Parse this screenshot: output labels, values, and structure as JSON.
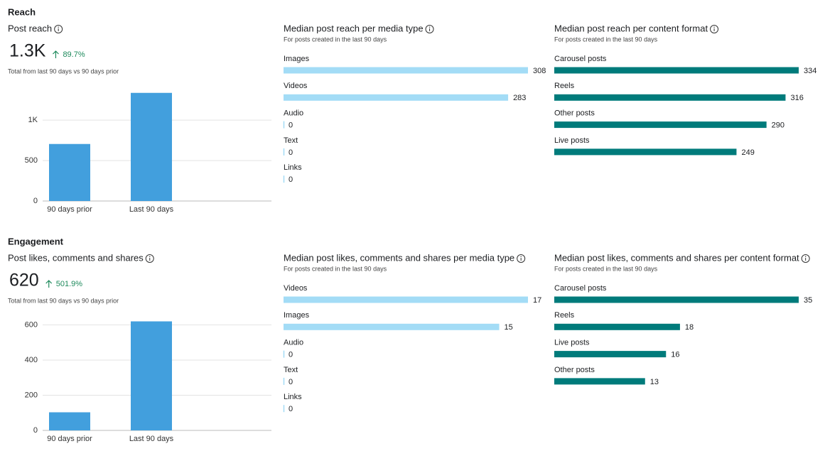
{
  "sections": [
    {
      "heading": "Reach"
    },
    {
      "heading": "Engagement"
    }
  ],
  "chart_data": [
    {
      "type": "bar",
      "title": "Post reach",
      "total": "1.3K",
      "change": "89.7%",
      "note": "Total from last 90 days vs 90 days prior",
      "categories": [
        "90 days prior",
        "Last 90 days"
      ],
      "values": [
        705,
        1337
      ],
      "color": "#429fdd",
      "ylim": [
        0,
        1370
      ],
      "yticks": [
        0,
        500,
        {
          "value": 1000,
          "label": "1K"
        }
      ],
      "grid": true
    },
    {
      "type": "hbar",
      "title": "Median post reach per media type",
      "subtitle": "For posts created in the last 90 days",
      "categories": [
        "Images",
        "Videos",
        "Audio",
        "Text",
        "Links"
      ],
      "values": [
        308,
        283,
        0,
        0,
        0
      ],
      "color": "#a3dcf6"
    },
    {
      "type": "hbar",
      "title": "Median post reach per content format",
      "subtitle": "For posts created in the last 90 days",
      "categories": [
        "Carousel posts",
        "Reels",
        "Other posts",
        "Live posts"
      ],
      "values": [
        334,
        316,
        290,
        249
      ],
      "color": "#007b7b"
    },
    {
      "type": "bar",
      "title": "Post likes, comments and shares",
      "total": "620",
      "change": "501.9%",
      "note": "Total from last 90 days vs 90 days prior",
      "categories": [
        "90 days prior",
        "Last 90 days"
      ],
      "values": [
        103,
        620
      ],
      "color": "#429fdd",
      "ylim": [
        0,
        630
      ],
      "yticks": [
        0,
        200,
        400,
        600
      ],
      "grid": true
    },
    {
      "type": "hbar",
      "title": "Median post likes, comments and shares per media type",
      "subtitle": "For posts created in the last 90 days",
      "categories": [
        "Videos",
        "Images",
        "Audio",
        "Text",
        "Links"
      ],
      "values": [
        17,
        15,
        0,
        0,
        0
      ],
      "color": "#a3dcf6"
    },
    {
      "type": "hbar",
      "title": "Median post likes, comments and shares per content format",
      "subtitle": "For posts created in the last 90 days",
      "categories": [
        "Carousel posts",
        "Reels",
        "Live posts",
        "Other posts"
      ],
      "values": [
        35,
        18,
        16,
        13
      ],
      "color": "#007b7b"
    }
  ]
}
